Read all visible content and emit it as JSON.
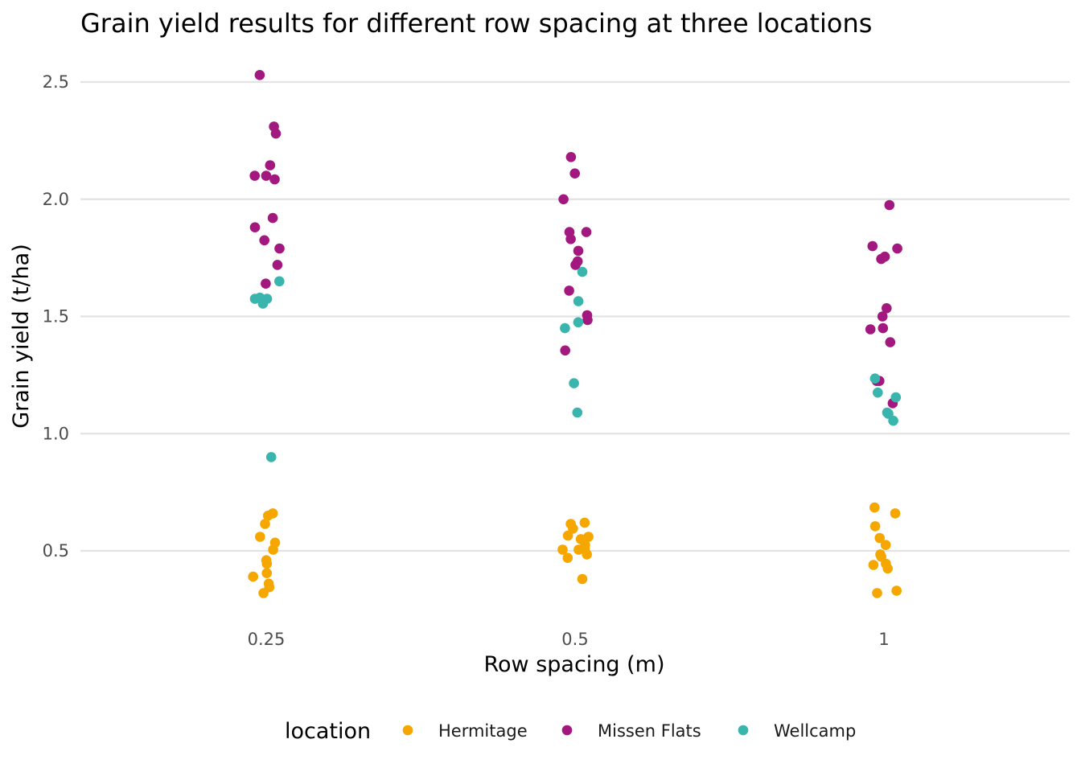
{
  "chart_data": {
    "type": "scatter",
    "title": "Grain yield results for different row spacing at three locations",
    "xlabel": "Row spacing (m)",
    "ylabel": "Grain yield (t/ha)",
    "categories": [
      "0.25",
      "0.5",
      "1"
    ],
    "y_ticks": [
      "0.5",
      "1.0",
      "1.5",
      "2.0",
      "2.5"
    ],
    "y_tick_values": [
      0.5,
      1.0,
      1.5,
      2.0,
      2.5
    ],
    "ylim": [
      0.28,
      2.56
    ],
    "grid": true,
    "legend": {
      "title": "location",
      "position": "bottom"
    },
    "series": [
      {
        "name": "Hermitage",
        "color": "#f5a700",
        "points": [
          {
            "x": "0.25",
            "y": 0.66
          },
          {
            "x": "0.25",
            "y": 0.65
          },
          {
            "x": "0.25",
            "y": 0.615
          },
          {
            "x": "0.25",
            "y": 0.56
          },
          {
            "x": "0.25",
            "y": 0.535
          },
          {
            "x": "0.25",
            "y": 0.505
          },
          {
            "x": "0.25",
            "y": 0.46
          },
          {
            "x": "0.25",
            "y": 0.445
          },
          {
            "x": "0.25",
            "y": 0.405
          },
          {
            "x": "0.25",
            "y": 0.39
          },
          {
            "x": "0.25",
            "y": 0.36
          },
          {
            "x": "0.25",
            "y": 0.345
          },
          {
            "x": "0.25",
            "y": 0.32
          },
          {
            "x": "0.5",
            "y": 0.62
          },
          {
            "x": "0.5",
            "y": 0.615
          },
          {
            "x": "0.5",
            "y": 0.595
          },
          {
            "x": "0.5",
            "y": 0.565
          },
          {
            "x": "0.5",
            "y": 0.56
          },
          {
            "x": "0.5",
            "y": 0.55
          },
          {
            "x": "0.5",
            "y": 0.525
          },
          {
            "x": "0.5",
            "y": 0.51
          },
          {
            "x": "0.5",
            "y": 0.505
          },
          {
            "x": "0.5",
            "y": 0.505
          },
          {
            "x": "0.5",
            "y": 0.485
          },
          {
            "x": "0.5",
            "y": 0.47
          },
          {
            "x": "0.5",
            "y": 0.38
          },
          {
            "x": "1",
            "y": 0.685
          },
          {
            "x": "1",
            "y": 0.66
          },
          {
            "x": "1",
            "y": 0.605
          },
          {
            "x": "1",
            "y": 0.555
          },
          {
            "x": "1",
            "y": 0.525
          },
          {
            "x": "1",
            "y": 0.485
          },
          {
            "x": "1",
            "y": 0.475
          },
          {
            "x": "1",
            "y": 0.445
          },
          {
            "x": "1",
            "y": 0.44
          },
          {
            "x": "1",
            "y": 0.425
          },
          {
            "x": "1",
            "y": 0.33
          },
          {
            "x": "1",
            "y": 0.32
          }
        ]
      },
      {
        "name": "Missen Flats",
        "color": "#a3187f",
        "points": [
          {
            "x": "0.25",
            "y": 2.53
          },
          {
            "x": "0.25",
            "y": 2.31
          },
          {
            "x": "0.25",
            "y": 2.28
          },
          {
            "x": "0.25",
            "y": 2.145
          },
          {
            "x": "0.25",
            "y": 2.1
          },
          {
            "x": "0.25",
            "y": 2.1
          },
          {
            "x": "0.25",
            "y": 2.085
          },
          {
            "x": "0.25",
            "y": 1.92
          },
          {
            "x": "0.25",
            "y": 1.88
          },
          {
            "x": "0.25",
            "y": 1.825
          },
          {
            "x": "0.25",
            "y": 1.79
          },
          {
            "x": "0.25",
            "y": 1.72
          },
          {
            "x": "0.25",
            "y": 1.64
          },
          {
            "x": "0.5",
            "y": 2.18
          },
          {
            "x": "0.5",
            "y": 2.11
          },
          {
            "x": "0.5",
            "y": 2.0
          },
          {
            "x": "0.5",
            "y": 1.86
          },
          {
            "x": "0.5",
            "y": 1.86
          },
          {
            "x": "0.5",
            "y": 1.83
          },
          {
            "x": "0.5",
            "y": 1.78
          },
          {
            "x": "0.5",
            "y": 1.735
          },
          {
            "x": "0.5",
            "y": 1.72
          },
          {
            "x": "0.5",
            "y": 1.61
          },
          {
            "x": "0.5",
            "y": 1.505
          },
          {
            "x": "0.5",
            "y": 1.485
          },
          {
            "x": "0.5",
            "y": 1.355
          },
          {
            "x": "1",
            "y": 1.975
          },
          {
            "x": "1",
            "y": 1.8
          },
          {
            "x": "1",
            "y": 1.79
          },
          {
            "x": "1",
            "y": 1.755
          },
          {
            "x": "1",
            "y": 1.745
          },
          {
            "x": "1",
            "y": 1.535
          },
          {
            "x": "1",
            "y": 1.5
          },
          {
            "x": "1",
            "y": 1.45
          },
          {
            "x": "1",
            "y": 1.445
          },
          {
            "x": "1",
            "y": 1.39
          },
          {
            "x": "1",
            "y": 1.225
          },
          {
            "x": "1",
            "y": 1.225
          },
          {
            "x": "1",
            "y": 1.13
          }
        ]
      },
      {
        "name": "Wellcamp",
        "color": "#39b5ad",
        "points": [
          {
            "x": "0.25",
            "y": 1.65
          },
          {
            "x": "0.25",
            "y": 1.58
          },
          {
            "x": "0.25",
            "y": 1.575
          },
          {
            "x": "0.25",
            "y": 1.575
          },
          {
            "x": "0.25",
            "y": 1.555
          },
          {
            "x": "0.25",
            "y": 0.9
          },
          {
            "x": "0.5",
            "y": 1.69
          },
          {
            "x": "0.5",
            "y": 1.565
          },
          {
            "x": "0.5",
            "y": 1.475
          },
          {
            "x": "0.5",
            "y": 1.45
          },
          {
            "x": "0.5",
            "y": 1.215
          },
          {
            "x": "0.5",
            "y": 1.09
          },
          {
            "x": "1",
            "y": 1.235
          },
          {
            "x": "1",
            "y": 1.175
          },
          {
            "x": "1",
            "y": 1.155
          },
          {
            "x": "1",
            "y": 1.09
          },
          {
            "x": "1",
            "y": 1.085
          },
          {
            "x": "1",
            "y": 1.055
          }
        ]
      }
    ]
  }
}
